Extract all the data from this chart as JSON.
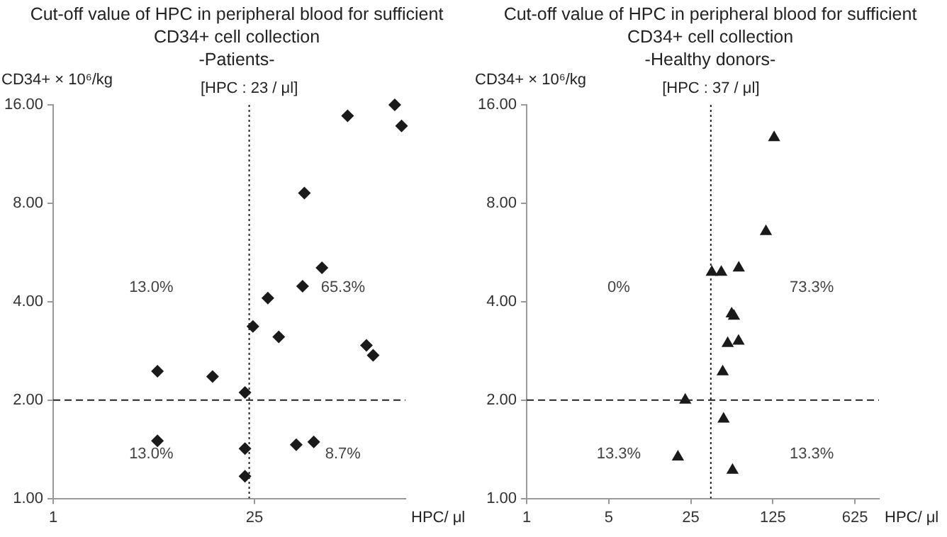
{
  "chart_data": [
    {
      "type": "scatter",
      "title": "Cut-off value of HPC in peripheral blood for sufficient CD34+ cell collection",
      "subtitle": "-Patients-",
      "xlabel": "HPC/ μl",
      "ylabel": "CD34+ × 10⁶/kg",
      "log": "xy",
      "grid": false,
      "legend": false,
      "marker": "diamond",
      "color": "#1a1a1a",
      "x": [
        111,
        236,
        263,
        55.6,
        73.6,
        31,
        54,
        24.4,
        36.9,
        150,
        167,
        5.3,
        12.8,
        21.5,
        5.3,
        21.5,
        48.8,
        64.6,
        21.5
      ],
      "values": [
        14.8,
        16,
        13.8,
        8.6,
        5.08,
        4.1,
        4.46,
        3.36,
        3.12,
        2.94,
        2.74,
        2.45,
        2.36,
        2.11,
        1.5,
        1.42,
        1.46,
        1.49,
        1.17
      ],
      "xlim": [
        1,
        280
      ],
      "xticks": [
        1,
        25
      ],
      "ylim": [
        1,
        16
      ],
      "yticks": [
        {
          "value": 1,
          "label": "1.00"
        },
        {
          "value": 2,
          "label": "2.00"
        },
        {
          "value": 4,
          "label": "4.00"
        },
        {
          "value": 8,
          "label": "8.00"
        },
        {
          "value": 16,
          "label": "16.00"
        }
      ],
      "ref_lines": [
        {
          "axis": "x",
          "value": 23,
          "label": "[HPC : 23 / μl]",
          "line_style": "dotted"
        },
        {
          "axis": "y",
          "value": 2,
          "line_style": "dashed"
        }
      ],
      "annotations": [
        "13.0%",
        "65.3%",
        "13.0%",
        "8.7%"
      ]
    },
    {
      "type": "scatter",
      "title": "Cut-off value of HPC in peripheral blood for sufficient CD34+ cell collection",
      "subtitle": "-Healthy donors-",
      "xlabel": "HPC/ μl",
      "ylabel": "CD34+ × 10⁶/kg",
      "log": "xy",
      "grid": false,
      "legend": false,
      "marker": "triangle",
      "color": "#1a1a1a",
      "x": [
        128,
        109,
        64,
        37.7,
        45.4,
        55.7,
        58.2,
        51.5,
        63.7,
        46.7,
        22.4,
        47.5,
        19.4,
        56.6
      ],
      "values": [
        12.7,
        6.56,
        5.07,
        4.92,
        4.92,
        3.67,
        3.61,
        2.98,
        3.03,
        2.44,
        2.0,
        1.75,
        1.34,
        1.22
      ],
      "xlim": [
        1,
        1000
      ],
      "xticks": [
        1,
        5,
        25,
        125,
        625
      ],
      "ylim": [
        1,
        16
      ],
      "yticks": [
        {
          "value": 1,
          "label": "1.00"
        },
        {
          "value": 2,
          "label": "2.00"
        },
        {
          "value": 4,
          "label": "4.00"
        },
        {
          "value": 8,
          "label": "8.00"
        },
        {
          "value": 16,
          "label": "16.00"
        }
      ],
      "ref_lines": [
        {
          "axis": "x",
          "value": 37,
          "label": "[HPC : 37 / μl]",
          "line_style": "dotted"
        },
        {
          "axis": "y",
          "value": 2,
          "line_style": "dashed"
        }
      ],
      "annotations": [
        "0%",
        "73.3%",
        "13.3%",
        "13.3%"
      ]
    }
  ]
}
